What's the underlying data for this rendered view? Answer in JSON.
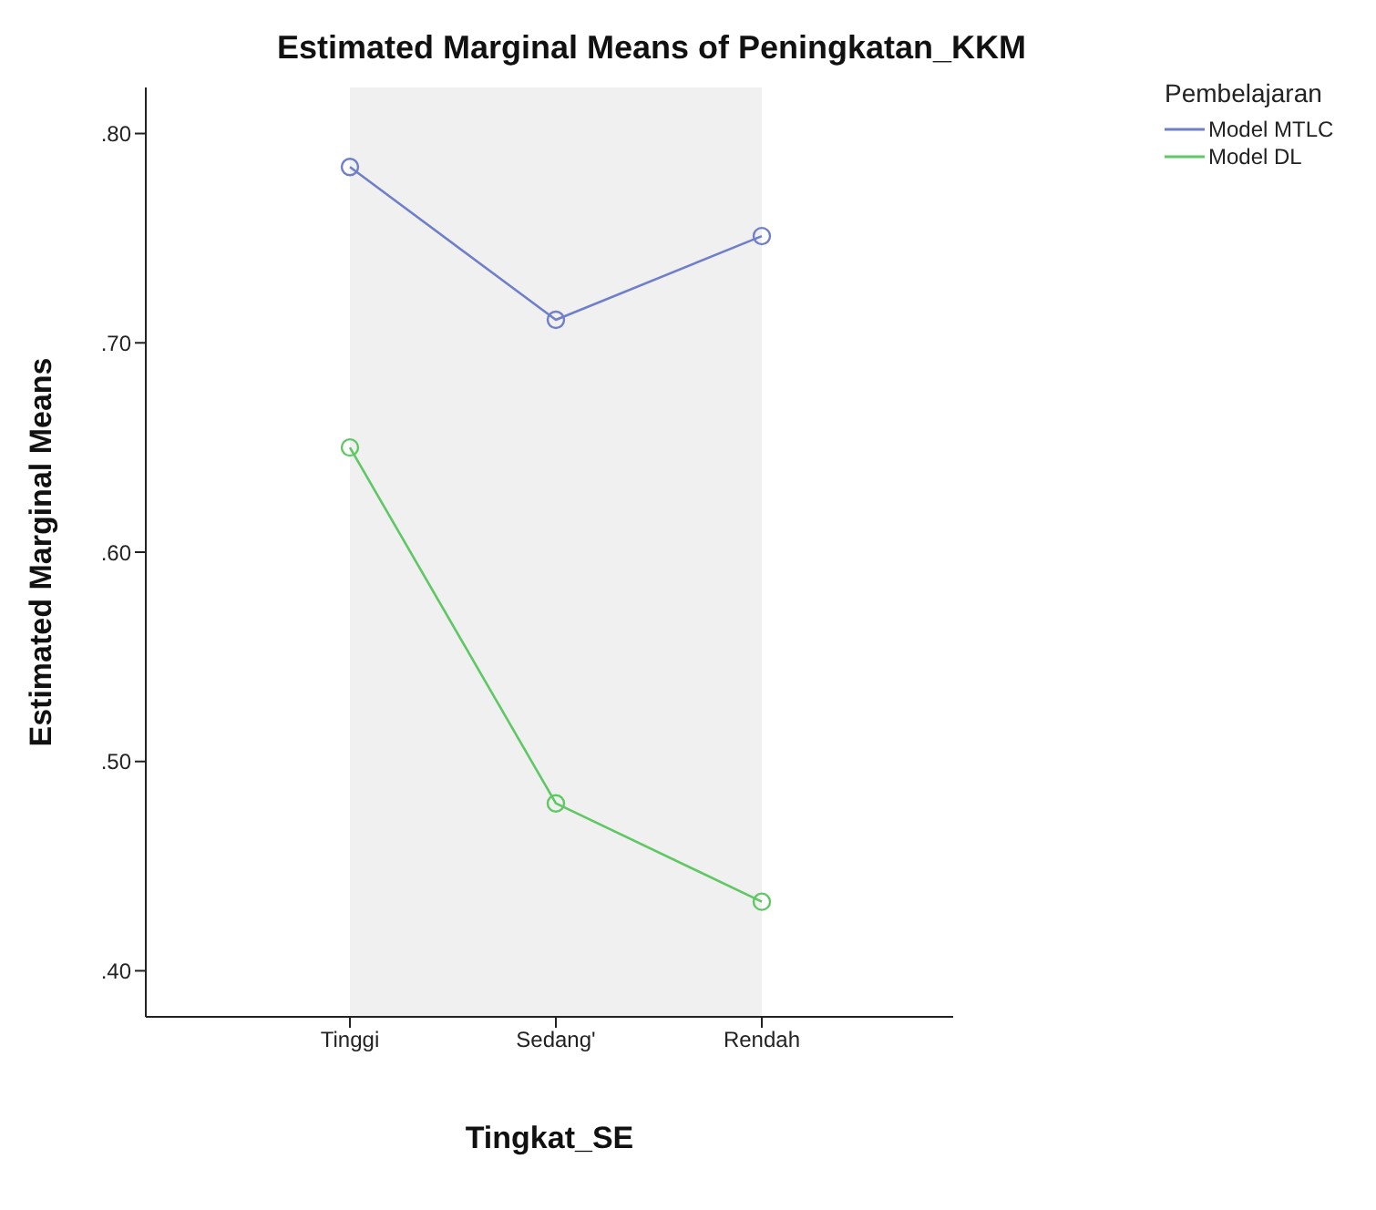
{
  "chart_data": {
    "type": "line",
    "title": "Estimated Marginal Means of Peningkatan_KKM",
    "xlabel": "Tingkat_SE",
    "ylabel": "Estimated Marginal Means",
    "legend_title": "Pembelajaran",
    "categories": [
      "Tinggi",
      "Sedang'",
      "Rendah"
    ],
    "series": [
      {
        "name": "Model MTLC",
        "color": "#6f7fca",
        "values": [
          0.784,
          0.711,
          0.751
        ]
      },
      {
        "name": "Model DL",
        "color": "#5fc864",
        "values": [
          0.65,
          0.48,
          0.433
        ]
      }
    ],
    "ylim": [
      0.378,
      0.822
    ],
    "yticks": [
      {
        "value": 0.4,
        "label": ".40"
      },
      {
        "value": 0.5,
        "label": ".50"
      },
      {
        "value": 0.6,
        "label": ".60"
      },
      {
        "value": 0.7,
        "label": ".70"
      },
      {
        "value": 0.8,
        "label": ".80"
      }
    ],
    "grid": false,
    "legend": "top right",
    "marker": "circle",
    "line_style": "solid"
  }
}
